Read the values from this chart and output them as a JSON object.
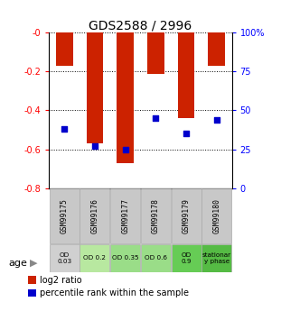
{
  "title": "GDS2588 / 2996",
  "samples": [
    "GSM99175",
    "GSM99176",
    "GSM99177",
    "GSM99178",
    "GSM99179",
    "GSM99180"
  ],
  "log2_ratios": [
    -0.17,
    -0.57,
    -0.67,
    -0.21,
    -0.44,
    -0.17
  ],
  "percentile_ranks": [
    38,
    27,
    25,
    45,
    35,
    44
  ],
  "bar_color": "#cc2200",
  "dot_color": "#0000cc",
  "ylim_left": [
    -0.8,
    0.0
  ],
  "ylim_right": [
    0,
    100
  ],
  "yticks_left": [
    0.0,
    -0.2,
    -0.4,
    -0.6,
    -0.8
  ],
  "ytick_labels_left": [
    "-0",
    "-0.2",
    "-0.4",
    "-0.6",
    "-0.8"
  ],
  "yticks_right": [
    0,
    25,
    50,
    75,
    100
  ],
  "ytick_labels_right": [
    "0",
    "25",
    "50",
    "75",
    "100%"
  ],
  "age_labels": [
    "OD\n0.03",
    "OD 0.2",
    "OD 0.35",
    "OD 0.6",
    "OD\n0.9",
    "stationar\ny phase"
  ],
  "age_colors": [
    "#d0d0d0",
    "#b8e8a0",
    "#9add88",
    "#9add88",
    "#66cc55",
    "#55bb44"
  ],
  "sample_bg_color": "#c8c8c8",
  "title_fontsize": 10,
  "bar_width": 0.55
}
